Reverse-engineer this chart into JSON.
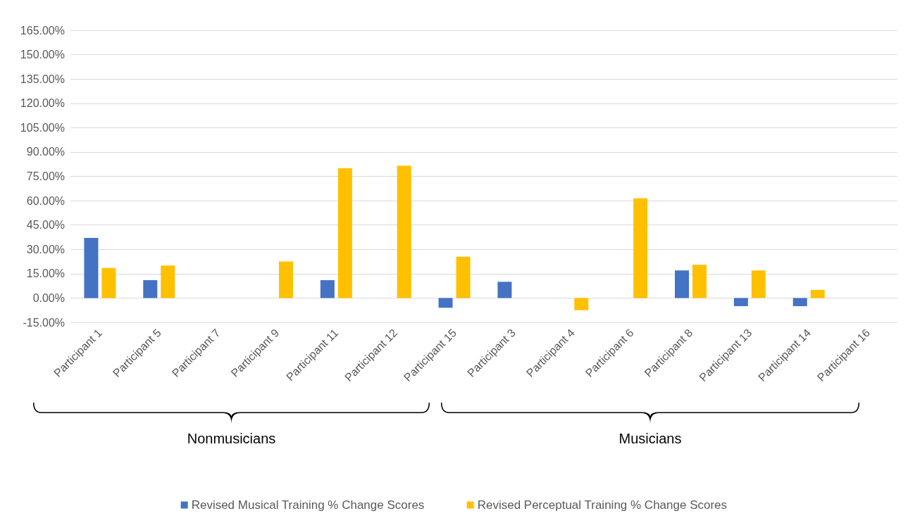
{
  "chart_data": {
    "type": "bar",
    "categories": [
      "Participant 1",
      "Participant 5",
      "Participant 7",
      "Participant 9",
      "Participant 11",
      "Participant 12",
      "Participant 15",
      "Participant 3",
      "Participant 4",
      "Participant 6",
      "Participant 8",
      "Participant 13",
      "Participant 14",
      "Participant 16"
    ],
    "series": [
      {
        "name": "Revised Musical Training % Change Scores",
        "color": "#4472c4",
        "values": [
          37,
          11,
          null,
          null,
          11,
          null,
          -6,
          10,
          null,
          null,
          17,
          -5,
          -5,
          null
        ]
      },
      {
        "name": "Revised Perceptual Training % Change Scores",
        "color": "#ffc000",
        "values": [
          18.5,
          20,
          null,
          22.5,
          80,
          81.5,
          25.5,
          null,
          -7.5,
          61.5,
          20.5,
          17,
          5,
          null
        ]
      }
    ],
    "ylim": [
      -15,
      165
    ],
    "yticks": [
      {
        "value": -15,
        "label": "-15.00%"
      },
      {
        "value": 0,
        "label": "0.00%"
      },
      {
        "value": 15,
        "label": "15.00%"
      },
      {
        "value": 30,
        "label": "30.00%"
      },
      {
        "value": 45,
        "label": "45.00%"
      },
      {
        "value": 60,
        "label": "60.00%"
      },
      {
        "value": 75,
        "label": "75.00%"
      },
      {
        "value": 90,
        "label": "90.00%"
      },
      {
        "value": 105,
        "label": "105.00%"
      },
      {
        "value": 120,
        "label": "120.00%"
      },
      {
        "value": 135,
        "label": "135.00%"
      },
      {
        "value": 150,
        "label": "150.00%"
      },
      {
        "value": 165,
        "label": "165.00%"
      }
    ],
    "grid": "y",
    "legend": "bottom",
    "annotations": [
      "Nonmusicians",
      "Musicians"
    ]
  }
}
